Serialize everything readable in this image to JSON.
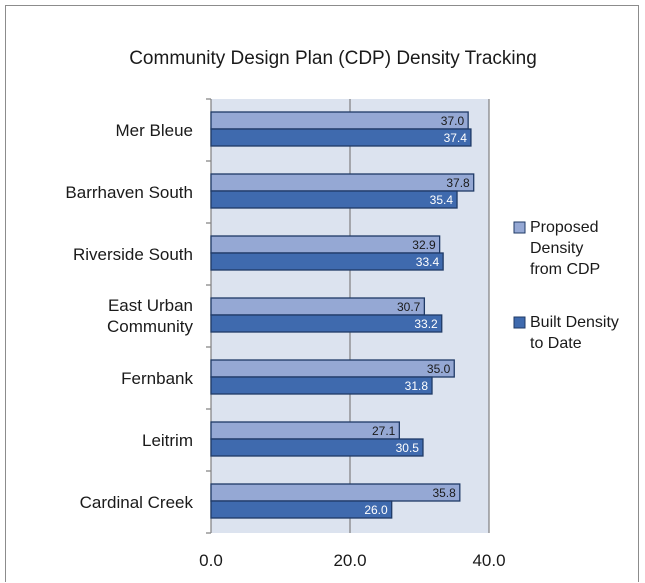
{
  "chart_data": {
    "type": "bar",
    "orientation": "horizontal",
    "title": "Community Design Plan (CDP) Density Tracking",
    "categories": [
      "Mer Bleue",
      "Barrhaven South",
      "Riverside South",
      "East Urban Community",
      "Fernbank",
      "Leitrim",
      "Cardinal Creek"
    ],
    "category_lines": [
      [
        "Mer Bleue"
      ],
      [
        "Barrhaven South"
      ],
      [
        "Riverside South"
      ],
      [
        "East Urban",
        "Community"
      ],
      [
        "Fernbank"
      ],
      [
        "Leitrim"
      ],
      [
        "Cardinal Creek"
      ]
    ],
    "series": [
      {
        "name": "Proposed Density from CDP",
        "name_lines": [
          "Proposed",
          "Density",
          "from CDP"
        ],
        "color": "#95a8d4",
        "label_color": "#1a1a1a",
        "values": [
          37.0,
          37.8,
          32.9,
          30.7,
          35.0,
          27.1,
          35.8
        ],
        "value_labels": [
          "37.0",
          "37.8",
          "32.9",
          "30.7",
          "35.0",
          "27.1",
          "35.8"
        ]
      },
      {
        "name": "Built Density to Date",
        "name_lines": [
          "Built Density",
          "to Date"
        ],
        "color": "#3f6aae",
        "label_color": "#ffffff",
        "values": [
          37.4,
          35.4,
          33.4,
          33.2,
          31.8,
          30.5,
          26.0
        ],
        "value_labels": [
          "37.4",
          "35.4",
          "33.4",
          "33.2",
          "31.8",
          "30.5",
          "26.0"
        ]
      }
    ],
    "xlim": [
      0,
      40
    ],
    "xticks": [
      0,
      20,
      40
    ],
    "xtick_labels": [
      "0.0",
      "20.0",
      "40.0"
    ],
    "grid": true,
    "legend_position": "right",
    "plot_background": "#dce3ef",
    "border_color": "#1f3a66"
  }
}
